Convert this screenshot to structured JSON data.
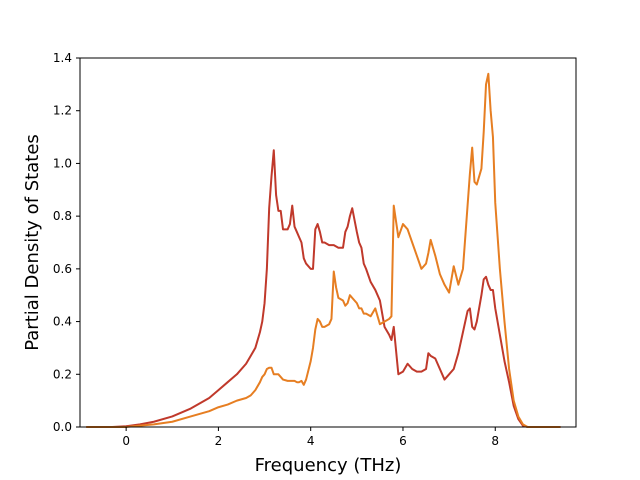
{
  "chart_data": {
    "type": "line",
    "title": "",
    "xlabel": "Frequency (THz)",
    "ylabel": "Partial Density of States",
    "xlim": [
      -1.0,
      9.75
    ],
    "ylim": [
      0.0,
      1.4
    ],
    "xticks": [
      0,
      2,
      4,
      6,
      8
    ],
    "xtick_labels": [
      "0",
      "2",
      "4",
      "6",
      "8"
    ],
    "yticks": [
      0.0,
      0.2,
      0.4,
      0.6,
      0.8,
      1.0,
      1.2,
      1.4
    ],
    "ytick_labels": [
      "0.0",
      "0.2",
      "0.4",
      "0.6",
      "0.8",
      "1.0",
      "1.2",
      "1.4"
    ],
    "grid": false,
    "legend": "none",
    "series": [
      {
        "color": "#c0392b",
        "x": [
          -0.85,
          -0.3,
          0.0,
          0.3,
          0.6,
          1.0,
          1.4,
          1.8,
          2.0,
          2.2,
          2.4,
          2.6,
          2.7,
          2.8,
          2.9,
          2.95,
          3.0,
          3.05,
          3.1,
          3.15,
          3.2,
          3.25,
          3.3,
          3.35,
          3.4,
          3.5,
          3.55,
          3.6,
          3.65,
          3.7,
          3.75,
          3.8,
          3.85,
          3.9,
          4.0,
          4.05,
          4.1,
          4.15,
          4.2,
          4.25,
          4.3,
          4.4,
          4.5,
          4.6,
          4.7,
          4.75,
          4.8,
          4.85,
          4.9,
          5.0,
          5.05,
          5.1,
          5.15,
          5.2,
          5.3,
          5.4,
          5.5,
          5.6,
          5.7,
          5.75,
          5.8,
          5.9,
          6.0,
          6.1,
          6.2,
          6.3,
          6.4,
          6.5,
          6.55,
          6.6,
          6.7,
          6.8,
          6.9,
          7.0,
          7.1,
          7.2,
          7.3,
          7.4,
          7.45,
          7.5,
          7.55,
          7.6,
          7.7,
          7.75,
          7.8,
          7.85,
          7.9,
          7.95,
          8.0,
          8.1,
          8.2,
          8.3,
          8.4,
          8.5,
          8.6,
          8.7,
          8.8,
          9.0,
          9.2,
          9.4
        ],
        "y": [
          0.0,
          0.0,
          0.003,
          0.01,
          0.02,
          0.04,
          0.07,
          0.11,
          0.14,
          0.17,
          0.2,
          0.24,
          0.27,
          0.3,
          0.36,
          0.4,
          0.47,
          0.6,
          0.83,
          0.95,
          1.05,
          0.88,
          0.82,
          0.82,
          0.75,
          0.75,
          0.77,
          0.84,
          0.76,
          0.74,
          0.72,
          0.7,
          0.64,
          0.62,
          0.6,
          0.6,
          0.75,
          0.77,
          0.74,
          0.7,
          0.7,
          0.69,
          0.69,
          0.68,
          0.68,
          0.74,
          0.76,
          0.8,
          0.83,
          0.74,
          0.7,
          0.68,
          0.62,
          0.6,
          0.55,
          0.52,
          0.48,
          0.38,
          0.35,
          0.33,
          0.38,
          0.2,
          0.21,
          0.24,
          0.22,
          0.21,
          0.21,
          0.22,
          0.28,
          0.27,
          0.26,
          0.22,
          0.18,
          0.2,
          0.22,
          0.28,
          0.36,
          0.44,
          0.45,
          0.38,
          0.37,
          0.4,
          0.5,
          0.56,
          0.57,
          0.54,
          0.52,
          0.52,
          0.45,
          0.35,
          0.25,
          0.17,
          0.08,
          0.03,
          0.005,
          0.0,
          0.0,
          0.0,
          0.0,
          0.0
        ]
      },
      {
        "color": "#e67e22",
        "x": [
          -0.85,
          -0.3,
          0.0,
          0.3,
          0.6,
          1.0,
          1.4,
          1.8,
          2.0,
          2.2,
          2.4,
          2.6,
          2.7,
          2.8,
          2.9,
          2.95,
          3.0,
          3.05,
          3.1,
          3.15,
          3.2,
          3.25,
          3.3,
          3.35,
          3.4,
          3.5,
          3.55,
          3.6,
          3.65,
          3.7,
          3.75,
          3.8,
          3.85,
          3.9,
          4.0,
          4.05,
          4.1,
          4.15,
          4.2,
          4.25,
          4.3,
          4.4,
          4.45,
          4.5,
          4.55,
          4.6,
          4.7,
          4.75,
          4.8,
          4.85,
          4.9,
          5.0,
          5.05,
          5.1,
          5.15,
          5.2,
          5.3,
          5.4,
          5.5,
          5.6,
          5.7,
          5.75,
          5.8,
          5.9,
          6.0,
          6.1,
          6.2,
          6.3,
          6.4,
          6.5,
          6.55,
          6.6,
          6.7,
          6.8,
          6.9,
          7.0,
          7.1,
          7.2,
          7.3,
          7.4,
          7.45,
          7.5,
          7.55,
          7.6,
          7.7,
          7.75,
          7.8,
          7.85,
          7.9,
          7.95,
          8.0,
          8.1,
          8.2,
          8.3,
          8.4,
          8.5,
          8.6,
          8.7,
          8.8,
          9.0,
          9.2,
          9.4
        ],
        "y": [
          0.0,
          0.0,
          0.0,
          0.005,
          0.01,
          0.02,
          0.04,
          0.06,
          0.075,
          0.085,
          0.1,
          0.11,
          0.12,
          0.14,
          0.17,
          0.19,
          0.2,
          0.22,
          0.225,
          0.225,
          0.2,
          0.2,
          0.2,
          0.19,
          0.18,
          0.175,
          0.175,
          0.175,
          0.175,
          0.17,
          0.17,
          0.175,
          0.16,
          0.18,
          0.25,
          0.3,
          0.37,
          0.41,
          0.4,
          0.38,
          0.38,
          0.39,
          0.41,
          0.59,
          0.53,
          0.49,
          0.48,
          0.46,
          0.47,
          0.5,
          0.49,
          0.47,
          0.45,
          0.45,
          0.43,
          0.43,
          0.42,
          0.45,
          0.39,
          0.4,
          0.41,
          0.42,
          0.84,
          0.72,
          0.77,
          0.75,
          0.7,
          0.65,
          0.6,
          0.62,
          0.66,
          0.71,
          0.65,
          0.58,
          0.54,
          0.51,
          0.61,
          0.54,
          0.6,
          0.84,
          0.96,
          1.06,
          0.93,
          0.92,
          0.98,
          1.12,
          1.3,
          1.34,
          1.2,
          1.1,
          0.85,
          0.6,
          0.4,
          0.22,
          0.1,
          0.04,
          0.01,
          0.0,
          0.0,
          0.0,
          0.0,
          0.0
        ]
      }
    ]
  }
}
